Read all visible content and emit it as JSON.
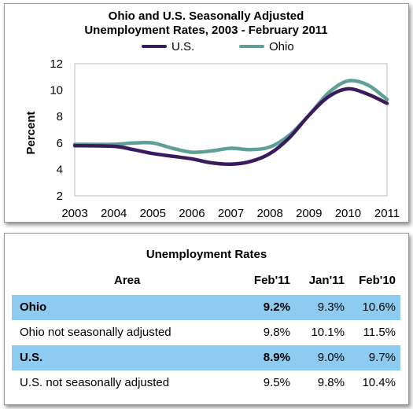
{
  "chart_data": {
    "type": "line",
    "title_line1": "Ohio and U.S. Seasonally Adjusted",
    "title_line2": "Unemployment Rates, 2003 - February 2011",
    "ylabel": "Percent",
    "xlabel": "",
    "ylim": [
      2,
      12
    ],
    "yticks": [
      "2",
      "4",
      "6",
      "8",
      "10",
      "12"
    ],
    "xlim": [
      2003,
      2011
    ],
    "xticks": [
      "2003",
      "2004",
      "2005",
      "2006",
      "2007",
      "2008",
      "2009",
      "2010",
      "2011"
    ],
    "grid": false,
    "legend_position": "top",
    "series": [
      {
        "name": "U.S.",
        "color": "#3a1c5e",
        "x": [
          2003.0,
          2004.0,
          2004.5,
          2005.0,
          2005.5,
          2006.0,
          2006.5,
          2007.0,
          2007.5,
          2008.0,
          2008.5,
          2009.0,
          2009.5,
          2010.0,
          2010.5,
          2011.0
        ],
        "y": [
          5.8,
          5.75,
          5.5,
          5.2,
          5.0,
          4.8,
          4.5,
          4.4,
          4.6,
          5.2,
          6.4,
          8.1,
          9.5,
          10.1,
          9.7,
          9.0
        ]
      },
      {
        "name": "Ohio",
        "color": "#5e9f96",
        "x": [
          2003.0,
          2004.0,
          2004.5,
          2005.0,
          2005.5,
          2006.0,
          2006.5,
          2007.0,
          2007.5,
          2008.0,
          2008.5,
          2009.0,
          2009.5,
          2010.0,
          2010.5,
          2011.0
        ],
        "y": [
          5.9,
          5.9,
          6.0,
          6.0,
          5.6,
          5.3,
          5.4,
          5.6,
          5.5,
          5.7,
          6.6,
          8.1,
          9.8,
          10.7,
          10.4,
          9.3
        ]
      }
    ]
  },
  "table": {
    "title": "Unemployment Rates",
    "headers": {
      "area": "Area",
      "feb11": "Feb'11",
      "jan11": "Jan'11",
      "feb10": "Feb'10"
    },
    "rows": [
      {
        "area": "Ohio",
        "feb11": "9.2%",
        "jan11": "9.3%",
        "feb10": "10.6%",
        "highlight": true
      },
      {
        "area": "Ohio not seasonally adjusted",
        "feb11": "9.8%",
        "jan11": "10.1%",
        "feb10": "11.5%",
        "highlight": false
      },
      {
        "area": "U.S.",
        "feb11": "8.9%",
        "jan11": "9.0%",
        "feb10": "9.7%",
        "highlight": true
      },
      {
        "area": "U.S. not seasonally adjusted",
        "feb11": "9.5%",
        "jan11": "9.8%",
        "feb10": "10.4%",
        "highlight": false
      }
    ]
  },
  "colors": {
    "highlight_row": "#8ecbf0",
    "us_line": "#3a1c5e",
    "ohio_line": "#5e9f96"
  }
}
